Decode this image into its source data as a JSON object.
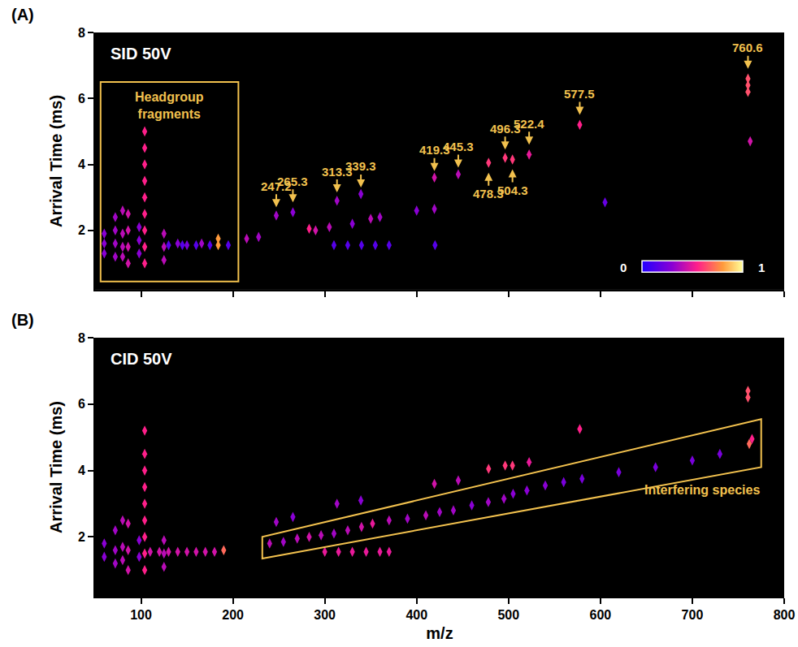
{
  "chart_data": [
    {
      "type": "scatter",
      "panel_label": "(A)",
      "title": "SID 50V",
      "y_label": "Arrival Time (ms)",
      "xlim": [
        50,
        800
      ],
      "xticks": [
        100,
        200,
        300,
        400,
        500,
        600,
        700,
        800
      ],
      "ylim": [
        0.2,
        8
      ],
      "yticks": [
        2,
        4,
        6,
        8
      ],
      "grid": false,
      "tick_labels": "y",
      "intensity_range": [
        0,
        1
      ],
      "colorbar_ticks": [
        0,
        1
      ],
      "series": [
        {
          "x": [
            60,
            60,
            60,
            72,
            72,
            72,
            72,
            80,
            80,
            80,
            80,
            86,
            86,
            86,
            86,
            98,
            98,
            98,
            104,
            104,
            104,
            104,
            104,
            104,
            104,
            104,
            104,
            125,
            125,
            125,
            140,
            150,
            166,
            184,
            184,
            130,
            145,
            160,
            175,
            195,
            215,
            228,
            247.2,
            265.3,
            283,
            290,
            305,
            313.3,
            339.3,
            330,
            350,
            360,
            310,
            325,
            340,
            355,
            370,
            420,
            400,
            419.3,
            419.3,
            445.3,
            478.3,
            496.3,
            504.3,
            522.4,
            577.5,
            605,
            760.6,
            760.6,
            760.6,
            763
          ],
          "y": [
            1.3,
            1.6,
            1.9,
            1.2,
            1.6,
            2.0,
            2.4,
            1.2,
            1.5,
            1.9,
            2.6,
            1.0,
            1.5,
            2.0,
            2.5,
            1.3,
            1.7,
            2.1,
            1.0,
            1.5,
            2.0,
            2.5,
            3.0,
            3.5,
            4.0,
            4.5,
            5.0,
            1.1,
            1.5,
            1.9,
            1.6,
            1.55,
            1.6,
            1.55,
            1.75,
            1.55,
            1.55,
            1.55,
            1.55,
            1.55,
            1.75,
            1.8,
            2.45,
            2.55,
            2.05,
            2.0,
            2.1,
            2.9,
            3.1,
            2.2,
            2.35,
            2.4,
            1.55,
            1.55,
            1.55,
            1.55,
            1.55,
            1.55,
            2.6,
            3.6,
            2.65,
            3.7,
            4.05,
            4.2,
            4.15,
            4.3,
            5.2,
            2.85,
            6.6,
            6.4,
            6.2,
            4.7
          ],
          "intensity": [
            0.3,
            0.3,
            0.3,
            0.35,
            0.35,
            0.35,
            0.35,
            0.4,
            0.4,
            0.4,
            0.4,
            0.45,
            0.45,
            0.45,
            0.45,
            0.3,
            0.3,
            0.3,
            0.55,
            0.55,
            0.55,
            0.55,
            0.55,
            0.55,
            0.55,
            0.55,
            0.55,
            0.4,
            0.4,
            0.4,
            0.3,
            0.25,
            0.35,
            0.8,
            0.8,
            0.15,
            0.15,
            0.15,
            0.15,
            0.15,
            0.4,
            0.35,
            0.35,
            0.3,
            0.55,
            0.45,
            0.4,
            0.35,
            0.3,
            0.3,
            0.4,
            0.35,
            0.15,
            0.15,
            0.15,
            0.15,
            0.15,
            0.15,
            0.3,
            0.45,
            0.35,
            0.4,
            0.6,
            0.6,
            0.6,
            0.5,
            0.55,
            0.2,
            0.65,
            0.65,
            0.65,
            0.45
          ]
        }
      ],
      "annotations": [
        {
          "text": "247.2",
          "x": 247.2,
          "y": 2.7,
          "arrow": "down"
        },
        {
          "text": "265.3",
          "x": 265.3,
          "y": 2.85,
          "arrow": "down"
        },
        {
          "text": "313.3",
          "x": 313.3,
          "y": 3.15,
          "arrow": "down"
        },
        {
          "text": "339.3",
          "x": 339.3,
          "y": 3.3,
          "arrow": "down"
        },
        {
          "text": "419.3",
          "x": 419.3,
          "y": 3.8,
          "arrow": "down"
        },
        {
          "text": "445.3",
          "x": 445.3,
          "y": 3.9,
          "arrow": "down"
        },
        {
          "text": "496.3",
          "x": 496.3,
          "y": 4.45,
          "arrow": "down"
        },
        {
          "text": "522.4",
          "x": 522.4,
          "y": 4.6,
          "arrow": "down"
        },
        {
          "text": "577.5",
          "x": 577.5,
          "y": 5.5,
          "arrow": "down"
        },
        {
          "text": "760.6",
          "x": 760.6,
          "y": 6.9,
          "arrow": "down"
        },
        {
          "text": "478.3",
          "x": 478.3,
          "y": 3.75,
          "arrow": "up"
        },
        {
          "text": "504.3",
          "x": 504.3,
          "y": 3.85,
          "arrow": "up"
        }
      ],
      "regions": [
        {
          "text": "Headgroup fragments",
          "shape": "rect",
          "x": [
            56,
            206
          ],
          "y": [
            0.45,
            6.5
          ]
        }
      ]
    },
    {
      "type": "scatter",
      "panel_label": "(B)",
      "title": "CID 50V",
      "x_label": "m/z",
      "y_label": "Arrival Time (ms)",
      "xlim": [
        50,
        800
      ],
      "xticks": [
        100,
        200,
        300,
        400,
        500,
        600,
        700,
        800
      ],
      "ylim": [
        0.2,
        8
      ],
      "yticks": [
        2,
        4,
        6,
        8
      ],
      "grid": false,
      "intensity_range": [
        0,
        1
      ],
      "series": [
        {
          "x": [
            60,
            60,
            72,
            72,
            72,
            80,
            80,
            80,
            86,
            86,
            86,
            98,
            98,
            104,
            104,
            104,
            104,
            104,
            104,
            104,
            104,
            104,
            125,
            125,
            125,
            110,
            120,
            130,
            140,
            150,
            160,
            170,
            180,
            190,
            300,
            315,
            330,
            345,
            360,
            370,
            247.2,
            265.3,
            313.3,
            339.3,
            419.3,
            445.3,
            478.3,
            496.3,
            504.3,
            522.4,
            577.5,
            760.6,
            760.6,
            240,
            255,
            270,
            283,
            296,
            310,
            325,
            340,
            352,
            370,
            390,
            410,
            425,
            440,
            460,
            478,
            495,
            505,
            520,
            540,
            560,
            580,
            620,
            660,
            700,
            730,
            762,
            765
          ],
          "y": [
            1.4,
            1.8,
            1.2,
            1.6,
            2.2,
            1.3,
            1.7,
            2.5,
            1.0,
            1.6,
            2.4,
            1.4,
            1.9,
            1.0,
            1.5,
            2.0,
            2.5,
            3.0,
            3.5,
            4.0,
            4.5,
            5.2,
            1.1,
            1.5,
            1.9,
            1.55,
            1.55,
            1.55,
            1.55,
            1.55,
            1.55,
            1.55,
            1.55,
            1.6,
            1.55,
            1.55,
            1.55,
            1.55,
            1.55,
            1.55,
            2.45,
            2.6,
            3.0,
            3.1,
            3.6,
            3.7,
            4.05,
            4.15,
            4.15,
            4.25,
            5.25,
            6.4,
            6.2,
            1.8,
            1.85,
            1.95,
            2.0,
            2.05,
            2.1,
            2.2,
            2.3,
            2.4,
            2.5,
            2.55,
            2.65,
            2.75,
            2.8,
            2.95,
            3.05,
            3.15,
            3.3,
            3.4,
            3.55,
            3.65,
            3.75,
            3.95,
            4.1,
            4.3,
            4.5,
            4.8,
            4.95
          ],
          "intensity": [
            0.3,
            0.3,
            0.35,
            0.35,
            0.35,
            0.4,
            0.4,
            0.4,
            0.45,
            0.45,
            0.45,
            0.3,
            0.3,
            0.55,
            0.55,
            0.55,
            0.55,
            0.55,
            0.55,
            0.55,
            0.55,
            0.55,
            0.4,
            0.4,
            0.4,
            0.45,
            0.45,
            0.45,
            0.45,
            0.45,
            0.45,
            0.45,
            0.45,
            0.7,
            0.5,
            0.5,
            0.5,
            0.5,
            0.5,
            0.5,
            0.35,
            0.3,
            0.35,
            0.3,
            0.45,
            0.4,
            0.6,
            0.6,
            0.6,
            0.5,
            0.55,
            0.65,
            0.65,
            0.4,
            0.35,
            0.4,
            0.45,
            0.4,
            0.35,
            0.4,
            0.45,
            0.5,
            0.4,
            0.35,
            0.4,
            0.35,
            0.35,
            0.3,
            0.35,
            0.35,
            0.3,
            0.3,
            0.3,
            0.25,
            0.25,
            0.25,
            0.25,
            0.25,
            0.25,
            0.7,
            0.55
          ]
        }
      ],
      "regions": [
        {
          "text": "Interfering species",
          "shape": "polygon",
          "x": [
            232,
            232,
            775,
            775
          ],
          "y": [
            1.35,
            2.0,
            5.55,
            4.1
          ]
        }
      ]
    }
  ]
}
